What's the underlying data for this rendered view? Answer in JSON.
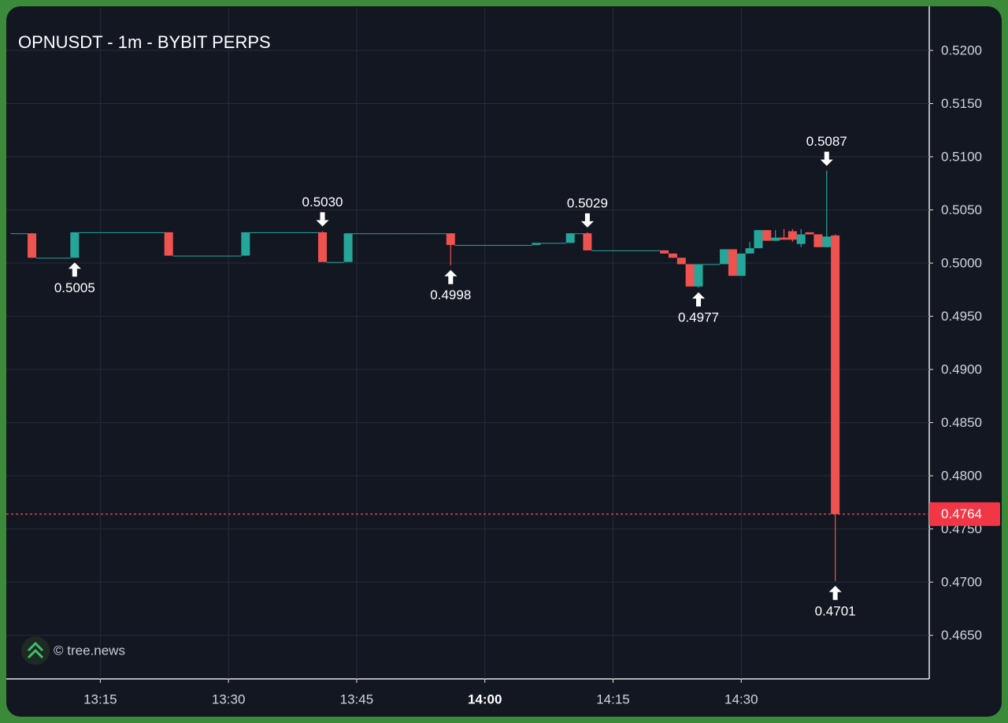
{
  "chart_data": {
    "type": "candlestick",
    "title": "OPNUSDT - 1m - BYBIT PERPS",
    "watermark": "© tree.news",
    "up_color": "#26a69a",
    "down_color": "#ef5350",
    "grid": true,
    "xlim": [
      "13:04",
      "14:52"
    ],
    "xticks": [
      "13:15",
      "13:30",
      "13:45",
      "14:00",
      "14:15",
      "14:30"
    ],
    "ylim": [
      0.4609,
      0.524
    ],
    "yticks": [
      {
        "value": 0.465,
        "label": "0.4650"
      },
      {
        "value": 0.47,
        "label": "0.4700"
      },
      {
        "value": 0.475,
        "label": "0.4750"
      },
      {
        "value": 0.48,
        "label": "0.4800"
      },
      {
        "value": 0.485,
        "label": "0.4850"
      },
      {
        "value": 0.49,
        "label": "0.4900"
      },
      {
        "value": 0.495,
        "label": "0.4950"
      },
      {
        "value": 0.5,
        "label": "0.5000"
      },
      {
        "value": 0.505,
        "label": "0.5050"
      },
      {
        "value": 0.51,
        "label": "0.5100"
      },
      {
        "value": 0.515,
        "label": "0.5150"
      },
      {
        "value": 0.52,
        "label": "0.5200"
      }
    ],
    "candles": [
      [
        "13:05",
        0.5028,
        0.5028,
        0.5028,
        0.5028
      ],
      [
        "13:06",
        0.5028,
        0.5028,
        0.5028,
        0.5028
      ],
      [
        "13:07",
        0.5028,
        0.5028,
        0.5005,
        0.5005
      ],
      [
        "13:08",
        0.5005,
        0.5005,
        0.5005,
        0.5005
      ],
      [
        "13:09",
        0.5005,
        0.5005,
        0.5005,
        0.5005
      ],
      [
        "13:10",
        0.5005,
        0.5005,
        0.5005,
        0.5005
      ],
      [
        "13:11",
        0.5005,
        0.5005,
        0.5005,
        0.5005
      ],
      [
        "13:12",
        0.5005,
        0.5029,
        0.5005,
        0.5029
      ],
      [
        "13:13",
        0.5029,
        0.5029,
        0.5029,
        0.5029
      ],
      [
        "13:14",
        0.5029,
        0.5029,
        0.5029,
        0.5029
      ],
      [
        "13:15",
        0.5029,
        0.5029,
        0.5029,
        0.5029
      ],
      [
        "13:16",
        0.5029,
        0.5029,
        0.5029,
        0.5029
      ],
      [
        "13:17",
        0.5029,
        0.5029,
        0.5029,
        0.5029
      ],
      [
        "13:18",
        0.5029,
        0.5029,
        0.5029,
        0.5029
      ],
      [
        "13:19",
        0.5029,
        0.5029,
        0.5029,
        0.5029
      ],
      [
        "13:20",
        0.5029,
        0.5029,
        0.5029,
        0.5029
      ],
      [
        "13:21",
        0.5029,
        0.5029,
        0.5029,
        0.5029
      ],
      [
        "13:22",
        0.5029,
        0.5029,
        0.5029,
        0.5029
      ],
      [
        "13:23",
        0.5029,
        0.5029,
        0.5007,
        0.5007
      ],
      [
        "13:24",
        0.5007,
        0.5007,
        0.5007,
        0.5007
      ],
      [
        "13:25",
        0.5007,
        0.5007,
        0.5007,
        0.5007
      ],
      [
        "13:26",
        0.5007,
        0.5007,
        0.5007,
        0.5007
      ],
      [
        "13:27",
        0.5007,
        0.5007,
        0.5007,
        0.5007
      ],
      [
        "13:28",
        0.5007,
        0.5007,
        0.5007,
        0.5007
      ],
      [
        "13:29",
        0.5007,
        0.5007,
        0.5007,
        0.5007
      ],
      [
        "13:30",
        0.5007,
        0.5007,
        0.5007,
        0.5007
      ],
      [
        "13:31",
        0.5007,
        0.5007,
        0.5007,
        0.5007
      ],
      [
        "13:32",
        0.5007,
        0.5029,
        0.5007,
        0.5029
      ],
      [
        "13:33",
        0.5029,
        0.5029,
        0.5029,
        0.5029
      ],
      [
        "13:34",
        0.5029,
        0.5029,
        0.5029,
        0.5029
      ],
      [
        "13:35",
        0.5029,
        0.5029,
        0.5029,
        0.5029
      ],
      [
        "13:36",
        0.5029,
        0.5029,
        0.5029,
        0.5029
      ],
      [
        "13:37",
        0.5029,
        0.5029,
        0.5029,
        0.5029
      ],
      [
        "13:38",
        0.5029,
        0.5029,
        0.5029,
        0.5029
      ],
      [
        "13:39",
        0.5029,
        0.5029,
        0.5029,
        0.5029
      ],
      [
        "13:40",
        0.5029,
        0.5029,
        0.5029,
        0.5029
      ],
      [
        "13:41",
        0.5029,
        0.503,
        0.5001,
        0.5001
      ],
      [
        "13:42",
        0.5001,
        0.5001,
        0.5001,
        0.5001
      ],
      [
        "13:43",
        0.5001,
        0.5001,
        0.5001,
        0.5001
      ],
      [
        "13:44",
        0.5001,
        0.5028,
        0.5001,
        0.5028
      ],
      [
        "13:45",
        0.5028,
        0.5028,
        0.5028,
        0.5028
      ],
      [
        "13:46",
        0.5028,
        0.5028,
        0.5028,
        0.5028
      ],
      [
        "13:47",
        0.5028,
        0.5028,
        0.5028,
        0.5028
      ],
      [
        "13:48",
        0.5028,
        0.5028,
        0.5028,
        0.5028
      ],
      [
        "13:49",
        0.5028,
        0.5028,
        0.5028,
        0.5028
      ],
      [
        "13:50",
        0.5028,
        0.5028,
        0.5028,
        0.5028
      ],
      [
        "13:51",
        0.5028,
        0.5028,
        0.5028,
        0.5028
      ],
      [
        "13:52",
        0.5028,
        0.5028,
        0.5028,
        0.5028
      ],
      [
        "13:53",
        0.5028,
        0.5028,
        0.5028,
        0.5028
      ],
      [
        "13:54",
        0.5028,
        0.5028,
        0.5028,
        0.5028
      ],
      [
        "13:55",
        0.5028,
        0.5028,
        0.5028,
        0.5028
      ],
      [
        "13:56",
        0.5028,
        0.5028,
        0.4998,
        0.5017
      ],
      [
        "13:57",
        0.5017,
        0.5017,
        0.5017,
        0.5017
      ],
      [
        "13:58",
        0.5017,
        0.5017,
        0.5017,
        0.5017
      ],
      [
        "13:59",
        0.5017,
        0.5017,
        0.5017,
        0.5017
      ],
      [
        "14:00",
        0.5017,
        0.5017,
        0.5017,
        0.5017
      ],
      [
        "14:01",
        0.5017,
        0.5017,
        0.5017,
        0.5017
      ],
      [
        "14:02",
        0.5017,
        0.5017,
        0.5017,
        0.5017
      ],
      [
        "14:03",
        0.5017,
        0.5017,
        0.5017,
        0.5017
      ],
      [
        "14:04",
        0.5017,
        0.5017,
        0.5017,
        0.5017
      ],
      [
        "14:05",
        0.5017,
        0.5017,
        0.5017,
        0.5017
      ],
      [
        "14:06",
        0.5017,
        0.5019,
        0.5017,
        0.5019
      ],
      [
        "14:07",
        0.5019,
        0.5019,
        0.5019,
        0.5019
      ],
      [
        "14:08",
        0.5019,
        0.5019,
        0.5019,
        0.5019
      ],
      [
        "14:09",
        0.5019,
        0.5019,
        0.5019,
        0.5019
      ],
      [
        "14:10",
        0.5019,
        0.5028,
        0.5019,
        0.5028
      ],
      [
        "14:11",
        0.5028,
        0.5028,
        0.5028,
        0.5028
      ],
      [
        "14:12",
        0.5028,
        0.5029,
        0.5012,
        0.5012
      ],
      [
        "14:13",
        0.5012,
        0.5012,
        0.5012,
        0.5012
      ],
      [
        "14:14",
        0.5012,
        0.5012,
        0.5012,
        0.5012
      ],
      [
        "14:15",
        0.5012,
        0.5012,
        0.5012,
        0.5012
      ],
      [
        "14:16",
        0.5012,
        0.5012,
        0.5012,
        0.5012
      ],
      [
        "14:17",
        0.5012,
        0.5012,
        0.5012,
        0.5012
      ],
      [
        "14:18",
        0.5012,
        0.5012,
        0.5012,
        0.5012
      ],
      [
        "14:19",
        0.5012,
        0.5012,
        0.5012,
        0.5012
      ],
      [
        "14:20",
        0.5012,
        0.5012,
        0.5012,
        0.5012
      ],
      [
        "14:21",
        0.5012,
        0.5012,
        0.5009,
        0.5009
      ],
      [
        "14:22",
        0.5009,
        0.5009,
        0.5005,
        0.5005
      ],
      [
        "14:23",
        0.5005,
        0.5005,
        0.4999,
        0.4999
      ],
      [
        "14:24",
        0.4999,
        0.4999,
        0.4978,
        0.4978
      ],
      [
        "14:25",
        0.4978,
        0.4999,
        0.4977,
        0.4999
      ],
      [
        "14:26",
        0.4999,
        0.4999,
        0.4999,
        0.4999
      ],
      [
        "14:27",
        0.4999,
        0.4999,
        0.4999,
        0.4999
      ],
      [
        "14:28",
        0.4999,
        0.5013,
        0.4999,
        0.5013
      ],
      [
        "14:29",
        0.5013,
        0.5013,
        0.4988,
        0.4988
      ],
      [
        "14:30",
        0.4988,
        0.5009,
        0.4988,
        0.5009
      ],
      [
        "14:31",
        0.5009,
        0.502,
        0.5009,
        0.5014
      ],
      [
        "14:32",
        0.5014,
        0.5031,
        0.5014,
        0.5031
      ],
      [
        "14:33",
        0.5031,
        0.5031,
        0.5021,
        0.5021
      ],
      [
        "14:34",
        0.5021,
        0.5031,
        0.5021,
        0.5024
      ],
      [
        "14:35",
        0.5024,
        0.5032,
        0.5022,
        0.5022
      ],
      [
        "14:36",
        0.503,
        0.5032,
        0.502,
        0.5022
      ],
      [
        "14:37",
        0.5018,
        0.5032,
        0.5015,
        0.5027
      ],
      [
        "14:38",
        0.5029,
        0.5029,
        0.5027,
        0.5027
      ],
      [
        "14:39",
        0.5027,
        0.5027,
        0.5015,
        0.5015
      ],
      [
        "14:40",
        0.5015,
        0.5087,
        0.5015,
        0.5025
      ],
      [
        "14:41",
        0.5026,
        0.5027,
        0.4701,
        0.4764
      ]
    ],
    "annotations": [
      {
        "x": "13:12",
        "value": 0.5005,
        "label": "0.5005"
      },
      {
        "x": "13:41",
        "value": 0.503,
        "label": "0.5030"
      },
      {
        "x": "13:56",
        "value": 0.4998,
        "label": "0.4998"
      },
      {
        "x": "14:12",
        "value": 0.5029,
        "label": "0.5029"
      },
      {
        "x": "14:25",
        "value": 0.4977,
        "label": "0.4977"
      },
      {
        "x": "14:40",
        "value": 0.5087,
        "label": "0.5087"
      },
      {
        "x": "14:41",
        "value": 0.4701,
        "label": "0.4701"
      }
    ],
    "last_price": {
      "value": 0.4764,
      "label": "0.4764"
    }
  }
}
